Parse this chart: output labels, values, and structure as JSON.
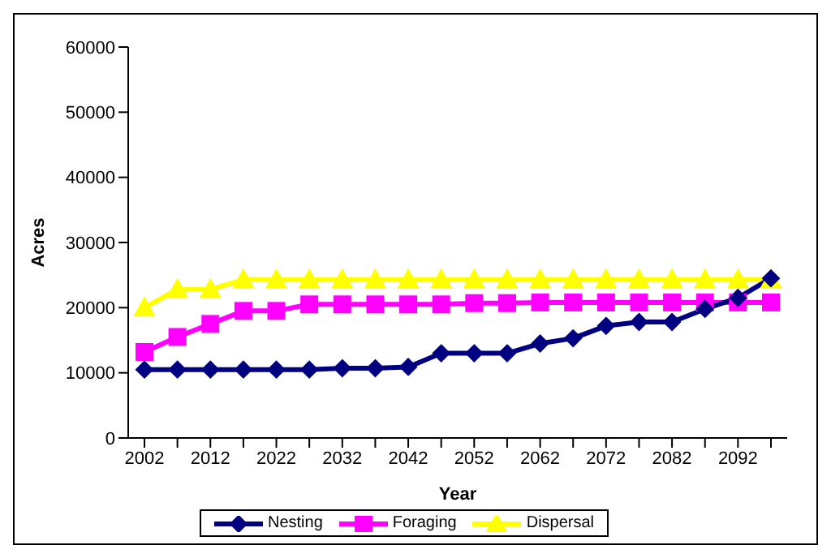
{
  "chart_data": {
    "type": "line",
    "xlabel": "Year",
    "ylabel": "Acres",
    "categories": [
      "2002",
      null,
      "2012",
      null,
      "2022",
      null,
      "2032",
      null,
      "2042",
      null,
      "2052",
      null,
      "2062",
      null,
      "2072",
      null,
      "2082",
      null,
      "2092",
      null
    ],
    "series": [
      {
        "name": "Nesting",
        "color": "#000080",
        "marker": "diamond",
        "values": [
          10500,
          10500,
          10500,
          10500,
          10500,
          10500,
          10700,
          10700,
          10900,
          13000,
          13000,
          13000,
          14500,
          15300,
          17200,
          17800,
          17800,
          19800,
          21500,
          24500
        ]
      },
      {
        "name": "Foraging",
        "color": "#ff00ff",
        "marker": "square",
        "values": [
          13200,
          15500,
          17500,
          19500,
          19500,
          20500,
          20500,
          20500,
          20500,
          20500,
          20700,
          20700,
          20800,
          20800,
          20800,
          20800,
          20800,
          20800,
          20800,
          20800
        ]
      },
      {
        "name": "Dispersal",
        "color": "#ffff00",
        "marker": "triangle",
        "values": [
          20000,
          22800,
          22800,
          24300,
          24300,
          24300,
          24300,
          24300,
          24300,
          24300,
          24300,
          24300,
          24300,
          24300,
          24300,
          24300,
          24300,
          24300,
          24300,
          24300
        ]
      }
    ],
    "ylim": [
      0,
      60000
    ],
    "yticks": [
      0,
      10000,
      20000,
      30000,
      40000,
      50000,
      60000
    ],
    "grid": false,
    "legend": "bottom"
  }
}
